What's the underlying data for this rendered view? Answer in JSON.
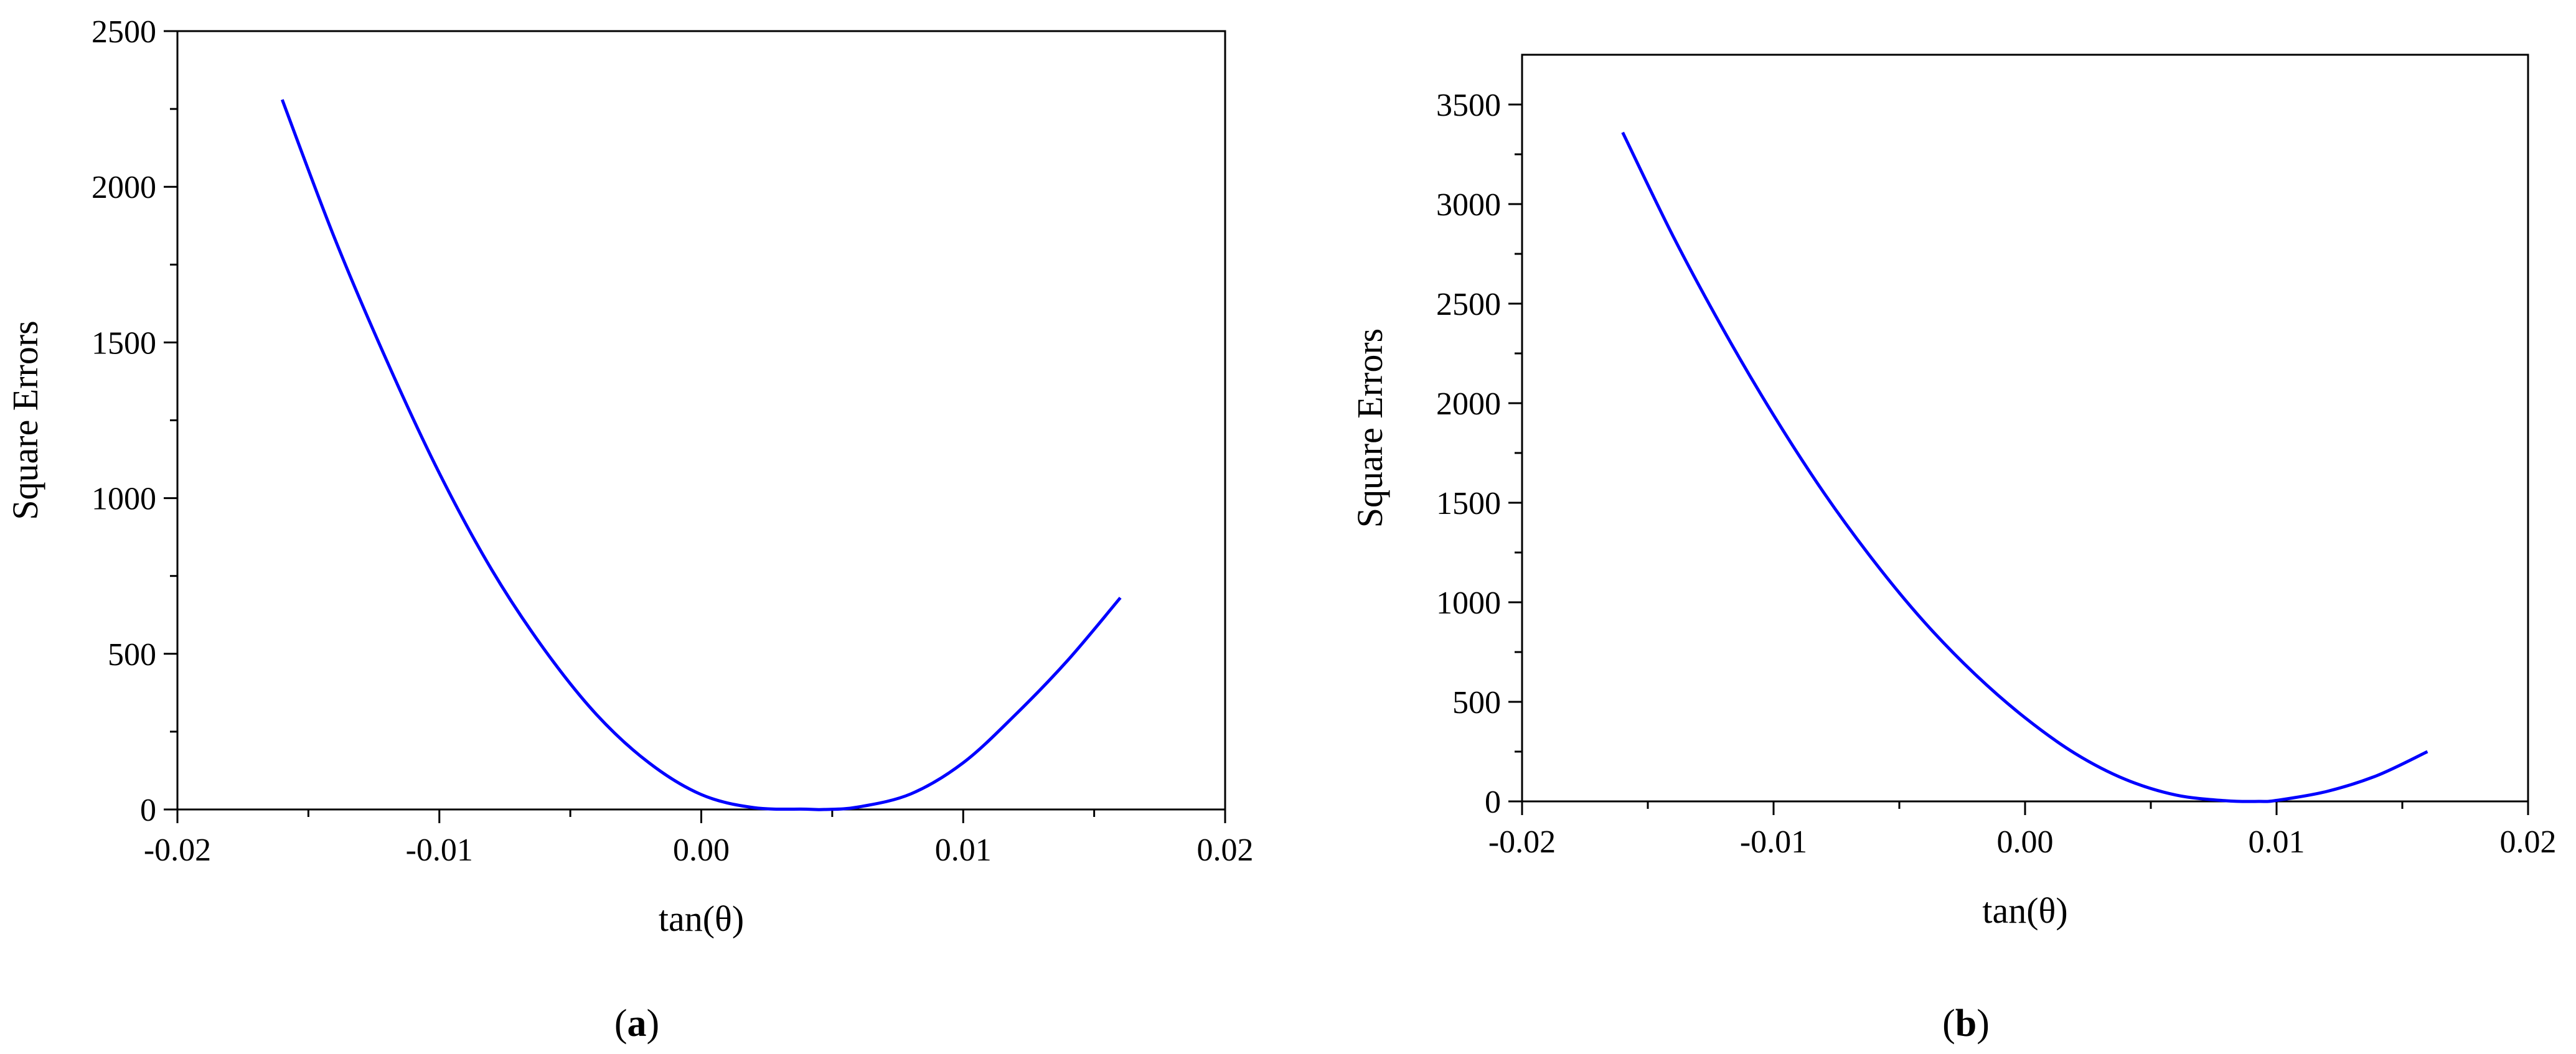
{
  "chart_data": [
    {
      "type": "line",
      "panel_label": "a",
      "xlabel": "tan(θ)",
      "ylabel": "Square Errors",
      "xlim": [
        -0.02,
        0.02
      ],
      "ylim": [
        0,
        2500
      ],
      "x_ticks": [
        -0.02,
        -0.01,
        0.0,
        0.01,
        0.02
      ],
      "x_tick_labels": [
        "-0.02",
        "-0.01",
        "0.00",
        "0.01",
        "0.02"
      ],
      "y_ticks": [
        0,
        500,
        1000,
        1500,
        2000,
        2500
      ],
      "y_tick_labels": [
        "0",
        "500",
        "1000",
        "1500",
        "2000",
        "2500"
      ],
      "grid": false,
      "line_color": "#0000ff",
      "series": [
        {
          "x": [
            -0.016,
            -0.014,
            -0.012,
            -0.01,
            -0.008,
            -0.006,
            -0.004,
            -0.002,
            0.0,
            0.002,
            0.004,
            0.0047,
            0.006,
            0.008,
            0.01,
            0.012,
            0.014,
            0.016
          ],
          "values": [
            2280,
            1835,
            1440,
            1080,
            770,
            515,
            305,
            150,
            48,
            6,
            1,
            0,
            8,
            50,
            150,
            305,
            480,
            680
          ]
        }
      ]
    },
    {
      "type": "line",
      "panel_label": "b",
      "xlabel": "tan(θ)",
      "ylabel": "Square Errors",
      "xlim": [
        -0.02,
        0.02
      ],
      "ylim": [
        0,
        3750
      ],
      "x_ticks": [
        -0.02,
        -0.01,
        0.0,
        0.01,
        0.02
      ],
      "x_tick_labels": [
        "-0.02",
        "-0.01",
        "0.00",
        "0.01",
        "0.02"
      ],
      "y_ticks": [
        0,
        500,
        1000,
        1500,
        2000,
        2500,
        3000,
        3500
      ],
      "y_tick_labels": [
        "0",
        "500",
        "1000",
        "1500",
        "2000",
        "2500",
        "3000",
        "3500"
      ],
      "grid": false,
      "line_color": "#0000ff",
      "series": [
        {
          "x": [
            -0.016,
            -0.014,
            -0.012,
            -0.01,
            -0.008,
            -0.006,
            -0.004,
            -0.002,
            0.0,
            0.002,
            0.004,
            0.006,
            0.008,
            0.0093,
            0.01,
            0.012,
            0.014,
            0.016
          ],
          "values": [
            3360,
            2840,
            2370,
            1940,
            1550,
            1205,
            900,
            640,
            420,
            240,
            110,
            32,
            3,
            0,
            5,
            50,
            130,
            250
          ]
        }
      ]
    }
  ]
}
